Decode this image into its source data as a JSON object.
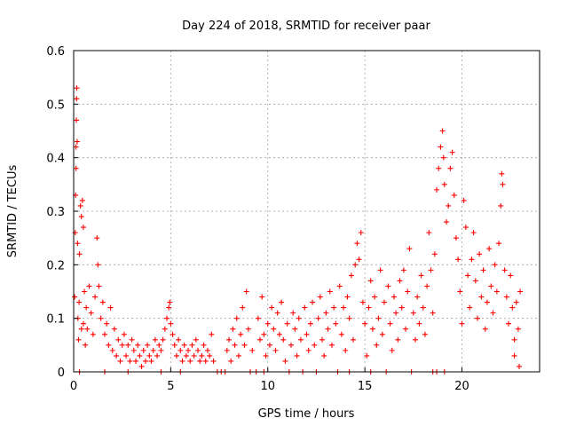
{
  "chart_data": {
    "type": "scatter",
    "title": "Day 224 of 2018, SRMTID for receiver paar",
    "xlabel": "GPS time / hours",
    "ylabel": "SRMTID / TECUs",
    "xlim": [
      0,
      24
    ],
    "ylim": [
      0,
      0.6
    ],
    "x_ticks": [
      0,
      5,
      10,
      15,
      20
    ],
    "y_ticks": [
      0,
      0.1,
      0.2,
      0.3,
      0.4,
      0.5,
      0.6
    ],
    "x_tick_labels": [
      "0",
      "5",
      "10",
      "15",
      "20"
    ],
    "y_tick_labels": [
      "0",
      "0.1",
      "0.2",
      "0.3",
      "0.4",
      "0.5",
      "0.6"
    ],
    "grid": true,
    "marker": "+",
    "marker_color": "#ff0000",
    "series": [
      {
        "name": "SRMTID",
        "points": [
          [
            0.05,
            0.14
          ],
          [
            0.08,
            0.26
          ],
          [
            0.1,
            0.33
          ],
          [
            0.12,
            0.38
          ],
          [
            0.12,
            0.42
          ],
          [
            0.14,
            0.47
          ],
          [
            0.15,
            0.51
          ],
          [
            0.16,
            0.53
          ],
          [
            0.18,
            0.43
          ],
          [
            0.2,
            0.24
          ],
          [
            0.22,
            0.1
          ],
          [
            0.25,
            0.06
          ],
          [
            0.28,
            0.13
          ],
          [
            0.3,
            0.22
          ],
          [
            0.35,
            0.31
          ],
          [
            0.4,
            0.29
          ],
          [
            0.45,
            0.32
          ],
          [
            0.5,
            0.27
          ],
          [
            0.5,
            0.09
          ],
          [
            0.55,
            0.15
          ],
          [
            0.6,
            0.05
          ],
          [
            0.65,
            0.12
          ],
          [
            0.7,
            0.08
          ],
          [
            0.8,
            0.16
          ],
          [
            0.9,
            0.11
          ],
          [
            1.0,
            0.07
          ],
          [
            1.1,
            0.14
          ],
          [
            1.2,
            0.25
          ],
          [
            1.25,
            0.2
          ],
          [
            1.3,
            0.16
          ],
          [
            1.4,
            0.1
          ],
          [
            1.5,
            0.13
          ],
          [
            1.6,
            0.07
          ],
          [
            1.7,
            0.09
          ],
          [
            1.8,
            0.05
          ],
          [
            1.9,
            0.12
          ],
          [
            2.0,
            0.04
          ],
          [
            2.1,
            0.08
          ],
          [
            2.2,
            0.03
          ],
          [
            2.3,
            0.06
          ],
          [
            2.4,
            0.02
          ],
          [
            2.5,
            0.05
          ],
          [
            2.6,
            0.07
          ],
          [
            2.7,
            0.03
          ],
          [
            2.8,
            0.05
          ],
          [
            2.9,
            0.02
          ],
          [
            3.0,
            0.06
          ],
          [
            3.1,
            0.04
          ],
          [
            3.2,
            0.02
          ],
          [
            3.3,
            0.05
          ],
          [
            3.4,
            0.03
          ],
          [
            3.5,
            0.01
          ],
          [
            3.6,
            0.04
          ],
          [
            3.7,
            0.02
          ],
          [
            3.8,
            0.05
          ],
          [
            3.9,
            0.03
          ],
          [
            4.0,
            0.02
          ],
          [
            4.1,
            0.04
          ],
          [
            4.2,
            0.06
          ],
          [
            4.3,
            0.03
          ],
          [
            4.4,
            0.05
          ],
          [
            4.5,
            0.04
          ],
          [
            4.6,
            0.06
          ],
          [
            4.7,
            0.08
          ],
          [
            4.8,
            0.1
          ],
          [
            4.9,
            0.12
          ],
          [
            4.95,
            0.13
          ],
          [
            5.0,
            0.09
          ],
          [
            5.1,
            0.07
          ],
          [
            5.2,
            0.05
          ],
          [
            5.3,
            0.03
          ],
          [
            5.4,
            0.06
          ],
          [
            5.5,
            0.04
          ],
          [
            5.6,
            0.02
          ],
          [
            5.7,
            0.05
          ],
          [
            5.8,
            0.03
          ],
          [
            5.9,
            0.04
          ],
          [
            6.0,
            0.02
          ],
          [
            6.1,
            0.05
          ],
          [
            6.2,
            0.03
          ],
          [
            6.3,
            0.06
          ],
          [
            6.4,
            0.04
          ],
          [
            6.5,
            0.02
          ],
          [
            6.6,
            0.03
          ],
          [
            6.7,
            0.05
          ],
          [
            6.8,
            0.02
          ],
          [
            6.9,
            0.04
          ],
          [
            7.0,
            0.03
          ],
          [
            7.1,
            0.07
          ],
          [
            7.2,
            0.02
          ],
          [
            7.4,
            0.0
          ],
          [
            7.6,
            0.0
          ],
          [
            7.8,
            0.0
          ],
          [
            7.9,
            0.04
          ],
          [
            8.0,
            0.06
          ],
          [
            8.1,
            0.02
          ],
          [
            8.2,
            0.08
          ],
          [
            8.3,
            0.05
          ],
          [
            8.4,
            0.1
          ],
          [
            8.5,
            0.03
          ],
          [
            8.6,
            0.07
          ],
          [
            8.7,
            0.12
          ],
          [
            8.8,
            0.05
          ],
          [
            8.9,
            0.15
          ],
          [
            9.0,
            0.08
          ],
          [
            9.1,
            0.0
          ],
          [
            9.2,
            0.04
          ],
          [
            9.4,
            0.0
          ],
          [
            9.5,
            0.1
          ],
          [
            9.6,
            0.06
          ],
          [
            9.7,
            0.14
          ],
          [
            9.8,
            0.07
          ],
          [
            9.9,
            0.03
          ],
          [
            10.0,
            0.09
          ],
          [
            10.1,
            0.05
          ],
          [
            10.2,
            0.12
          ],
          [
            10.3,
            0.08
          ],
          [
            10.4,
            0.04
          ],
          [
            10.5,
            0.11
          ],
          [
            10.6,
            0.07
          ],
          [
            10.7,
            0.13
          ],
          [
            10.8,
            0.06
          ],
          [
            10.9,
            0.02
          ],
          [
            11.0,
            0.09
          ],
          [
            11.1,
            0.0
          ],
          [
            11.2,
            0.05
          ],
          [
            11.3,
            0.11
          ],
          [
            11.4,
            0.08
          ],
          [
            11.5,
            0.03
          ],
          [
            11.6,
            0.1
          ],
          [
            11.7,
            0.06
          ],
          [
            11.8,
            0.0
          ],
          [
            11.9,
            0.12
          ],
          [
            12.0,
            0.07
          ],
          [
            12.1,
            0.04
          ],
          [
            12.2,
            0.09
          ],
          [
            12.3,
            0.13
          ],
          [
            12.4,
            0.05
          ],
          [
            12.5,
            0.0
          ],
          [
            12.6,
            0.1
          ],
          [
            12.7,
            0.14
          ],
          [
            12.8,
            0.06
          ],
          [
            12.9,
            0.03
          ],
          [
            13.0,
            0.11
          ],
          [
            13.1,
            0.08
          ],
          [
            13.2,
            0.15
          ],
          [
            13.3,
            0.05
          ],
          [
            13.4,
            0.12
          ],
          [
            13.5,
            0.09
          ],
          [
            13.6,
            0.0
          ],
          [
            13.7,
            0.16
          ],
          [
            13.8,
            0.07
          ],
          [
            13.9,
            0.12
          ],
          [
            14.0,
            0.04
          ],
          [
            14.1,
            0.14
          ],
          [
            14.2,
            0.1
          ],
          [
            14.3,
            0.18
          ],
          [
            14.4,
            0.06
          ],
          [
            14.5,
            0.2
          ],
          [
            14.6,
            0.24
          ],
          [
            14.7,
            0.21
          ],
          [
            14.8,
            0.26
          ],
          [
            14.9,
            0.13
          ],
          [
            15.0,
            0.09
          ],
          [
            15.1,
            0.03
          ],
          [
            15.2,
            0.12
          ],
          [
            15.3,
            0.17
          ],
          [
            15.4,
            0.08
          ],
          [
            15.5,
            0.14
          ],
          [
            15.6,
            0.05
          ],
          [
            15.7,
            0.1
          ],
          [
            15.8,
            0.19
          ],
          [
            15.9,
            0.07
          ],
          [
            16.0,
            0.13
          ],
          [
            16.1,
            0.0
          ],
          [
            16.2,
            0.16
          ],
          [
            16.3,
            0.09
          ],
          [
            16.4,
            0.04
          ],
          [
            16.5,
            0.14
          ],
          [
            16.6,
            0.11
          ],
          [
            16.7,
            0.06
          ],
          [
            16.8,
            0.17
          ],
          [
            16.9,
            0.12
          ],
          [
            17.0,
            0.19
          ],
          [
            17.1,
            0.08
          ],
          [
            17.2,
            0.15
          ],
          [
            17.3,
            0.23
          ],
          [
            17.4,
            0.0
          ],
          [
            17.5,
            0.11
          ],
          [
            17.6,
            0.06
          ],
          [
            17.7,
            0.14
          ],
          [
            17.8,
            0.09
          ],
          [
            17.9,
            0.18
          ],
          [
            18.0,
            0.12
          ],
          [
            18.1,
            0.07
          ],
          [
            18.2,
            0.16
          ],
          [
            18.3,
            0.26
          ],
          [
            18.4,
            0.19
          ],
          [
            18.5,
            0.11
          ],
          [
            18.6,
            0.22
          ],
          [
            18.7,
            0.34
          ],
          [
            18.8,
            0.38
          ],
          [
            18.9,
            0.42
          ],
          [
            19.0,
            0.45
          ],
          [
            19.05,
            0.4
          ],
          [
            19.1,
            0.35
          ],
          [
            19.2,
            0.28
          ],
          [
            19.3,
            0.31
          ],
          [
            19.4,
            0.38
          ],
          [
            19.5,
            0.41
          ],
          [
            19.6,
            0.33
          ],
          [
            19.7,
            0.25
          ],
          [
            19.8,
            0.21
          ],
          [
            19.9,
            0.15
          ],
          [
            20.0,
            0.09
          ],
          [
            20.1,
            0.32
          ],
          [
            20.2,
            0.27
          ],
          [
            20.3,
            0.18
          ],
          [
            20.4,
            0.12
          ],
          [
            20.5,
            0.21
          ],
          [
            20.6,
            0.26
          ],
          [
            20.7,
            0.17
          ],
          [
            20.8,
            0.1
          ],
          [
            20.9,
            0.22
          ],
          [
            21.0,
            0.14
          ],
          [
            21.1,
            0.19
          ],
          [
            21.2,
            0.08
          ],
          [
            21.3,
            0.13
          ],
          [
            21.4,
            0.23
          ],
          [
            21.5,
            0.16
          ],
          [
            21.6,
            0.11
          ],
          [
            21.7,
            0.2
          ],
          [
            21.8,
            0.15
          ],
          [
            21.9,
            0.24
          ],
          [
            22.0,
            0.31
          ],
          [
            22.05,
            0.37
          ],
          [
            22.1,
            0.35
          ],
          [
            22.2,
            0.19
          ],
          [
            22.3,
            0.14
          ],
          [
            22.4,
            0.09
          ],
          [
            22.5,
            0.18
          ],
          [
            22.6,
            0.12
          ],
          [
            22.7,
            0.06
          ],
          [
            22.8,
            0.13
          ],
          [
            22.9,
            0.08
          ],
          [
            23.0,
            0.15
          ],
          [
            22.95,
            0.01
          ],
          [
            22.7,
            0.03
          ],
          [
            0.3,
            0.0
          ],
          [
            0.4,
            0.08
          ],
          [
            1.6,
            0.0
          ],
          [
            2.8,
            0.0
          ],
          [
            4.5,
            0.0
          ],
          [
            5.5,
            0.0
          ],
          [
            9.8,
            0.0
          ],
          [
            15.3,
            0.0
          ],
          [
            18.5,
            0.0
          ],
          [
            18.7,
            0.0
          ],
          [
            19.1,
            0.0
          ],
          [
            14.2,
            0.0
          ]
        ]
      }
    ]
  }
}
